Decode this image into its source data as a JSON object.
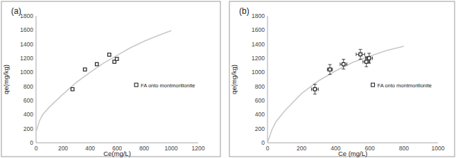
{
  "chart_data": [
    {
      "type": "scatter",
      "title": "(a)",
      "x_label": "Ce(mg/L)",
      "y_label": "qe(mg/kg)",
      "xlim": [
        0,
        1200
      ],
      "ylim": [
        0,
        1800
      ],
      "xticks": [
        0,
        200,
        400,
        600,
        800,
        1000,
        1200
      ],
      "yticks": [
        0,
        200,
        400,
        600,
        800,
        1000,
        1200,
        1400,
        1600,
        1800
      ],
      "grid": false,
      "legend": "right",
      "series": [
        {
          "name": "FA onto montmorillonite",
          "type": "scatter",
          "marker": "square",
          "color": "#222222",
          "x": [
            270,
            362,
            450,
            542,
            580,
            598
          ],
          "values": [
            760,
            1040,
            1115,
            1250,
            1150,
            1190
          ]
        },
        {
          "type": "line",
          "color": "#c8c8c8",
          "x": [
            3,
            25,
            50,
            100,
            200,
            300,
            400,
            500,
            600,
            700,
            800,
            900,
            1000
          ],
          "values": [
            170,
            310,
            400,
            510,
            690,
            860,
            1000,
            1130,
            1240,
            1350,
            1440,
            1520,
            1590
          ]
        }
      ]
    },
    {
      "type": "scatter",
      "title": "(b)",
      "x_label": "Ce (mg/L)",
      "y_label": "qe(mg/kg)",
      "xlim": [
        0,
        1000
      ],
      "ylim": [
        0,
        1800
      ],
      "xticks": [
        0,
        200,
        400,
        600,
        800,
        1000
      ],
      "yticks": [
        0,
        200,
        400,
        600,
        800,
        1000,
        1200,
        1400,
        1600,
        1800
      ],
      "grid": false,
      "legend": "right",
      "series": [
        {
          "name": "FA onto montmorillonite",
          "type": "scatter",
          "marker": "square",
          "color": "#222222",
          "x": [
            278,
            366,
            446,
            545,
            580,
            596
          ],
          "values": [
            760,
            1040,
            1115,
            1255,
            1150,
            1200
          ],
          "x_error": [
            20,
            15,
            20,
            25,
            20,
            20
          ],
          "y_error": [
            70,
            70,
            70,
            70,
            70,
            70
          ]
        },
        {
          "type": "line",
          "color": "#c8c8c8",
          "x": [
            0,
            25,
            50,
            100,
            200,
            300,
            400,
            500,
            600,
            700,
            800
          ],
          "values": [
            0,
            180,
            300,
            450,
            700,
            880,
            1020,
            1140,
            1230,
            1310,
            1370
          ]
        }
      ]
    }
  ]
}
